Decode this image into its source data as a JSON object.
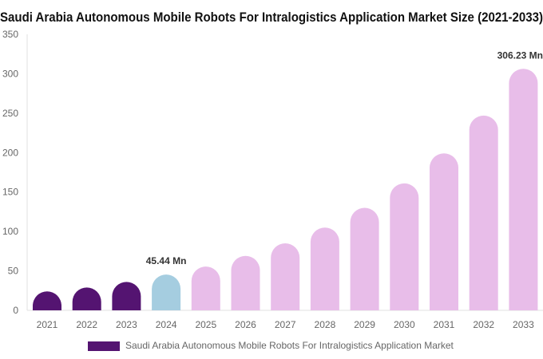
{
  "chart_data": {
    "type": "bar",
    "title": "Saudi Arabia Autonomous Mobile Robots For Intralogistics Application Market Size (2021-2033)",
    "categories": [
      "2021",
      "2022",
      "2023",
      "2024",
      "2025",
      "2026",
      "2027",
      "2028",
      "2029",
      "2030",
      "2031",
      "2032",
      "2033"
    ],
    "series": [
      {
        "name": "Saudi Arabia Autonomous Mobile Robots For Intralogistics Application Market",
        "values": [
          24,
          29,
          36,
          45.44,
          55.5,
          69,
          85,
          105,
          130,
          161,
          199,
          247,
          306.23
        ]
      }
    ],
    "data_labels": [
      {
        "category": "2024",
        "text": "45.44 Mn"
      },
      {
        "category": "2033",
        "text": "306.23 Mn"
      }
    ],
    "ylim": [
      0,
      350
    ],
    "yticks": [
      0,
      50,
      100,
      150,
      200,
      250,
      300,
      350
    ],
    "grid": false,
    "legend": "bottom",
    "colors": {
      "historical": "#541471",
      "base_year": "#a5cde0",
      "forecast": "#e8bde9"
    }
  }
}
